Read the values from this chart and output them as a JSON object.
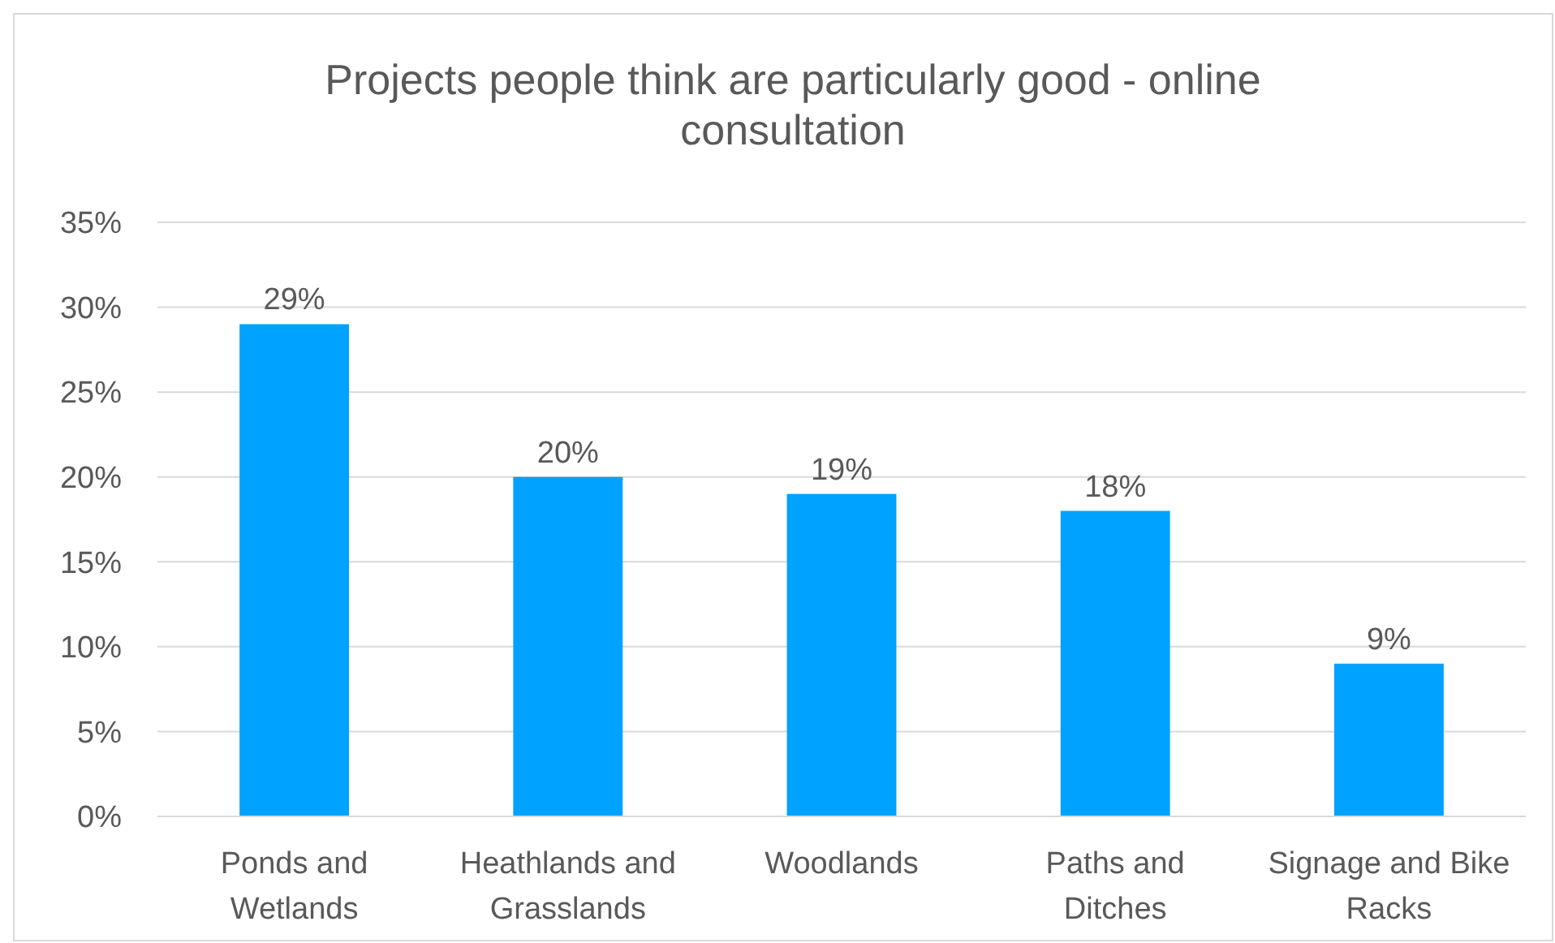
{
  "chart_data": {
    "type": "bar",
    "title": "Projects people think are particularly good - online consultation",
    "categories": [
      "Ponds and Wetlands",
      "Heathlands and Grasslands",
      "Woodlands",
      "Paths and Ditches",
      "Signage and Bike Racks"
    ],
    "values": [
      29,
      20,
      19,
      18,
      9
    ],
    "value_labels": [
      "29%",
      "20%",
      "19%",
      "18%",
      "9%"
    ],
    "color": "#00a2ff",
    "ylim": [
      0,
      35
    ],
    "yticks": [
      {
        "value": 0,
        "label": "0%"
      },
      {
        "value": 5,
        "label": "5%"
      },
      {
        "value": 10,
        "label": "10%"
      },
      {
        "value": 15,
        "label": "15%"
      },
      {
        "value": 20,
        "label": "20%"
      },
      {
        "value": 25,
        "label": "25%"
      },
      {
        "value": 30,
        "label": "30%"
      },
      {
        "value": 35,
        "label": "35%"
      }
    ],
    "grid": "y"
  }
}
